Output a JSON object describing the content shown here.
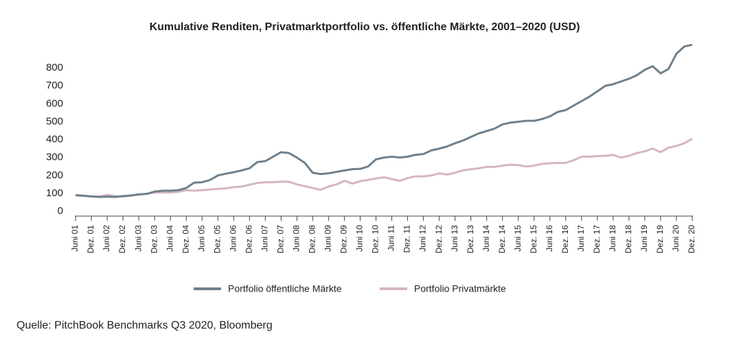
{
  "chart_data": {
    "type": "line",
    "title": "Kumulative Renditen, Privatmarktportfolio vs. öffentliche Märkte, 2001–2020 (USD)",
    "source": "Quelle: PitchBook Benchmarks Q3 2020, Bloomberg",
    "categories": [
      "Juni 01",
      null,
      "Dez. 01",
      null,
      "Juni 02",
      null,
      "Dez. 02",
      null,
      "Juni 03",
      null,
      "Dez. 03",
      null,
      "Juni 04",
      null,
      "Dez. 04",
      null,
      "Juni 05",
      null,
      "Dez. 05",
      null,
      "Juni 06",
      null,
      "Dez. 06",
      null,
      "Juni 07",
      null,
      "Dez. 07",
      null,
      "Juni 08",
      null,
      "Dez. 08",
      null,
      "Juni 09",
      null,
      "Dez. 09",
      null,
      "Juni 10",
      null,
      "Dez. 10",
      null,
      "Juni 11",
      null,
      "Dez. 11",
      null,
      "Juni 12",
      null,
      "Dez. 12",
      null,
      "Juni 13",
      null,
      "Dez. 13",
      null,
      "Juni 14",
      null,
      "Dez. 14",
      null,
      "Juni 15",
      null,
      "Dez. 15",
      null,
      "Juni 16",
      null,
      "Dez. 16",
      null,
      "Juni 17",
      null,
      "Dez. 17",
      null,
      "Juni 18",
      null,
      "Dez. 18",
      null,
      "Juni 19",
      null,
      "Dez. 19",
      null,
      "Juni 20",
      null,
      "Dez. 20"
    ],
    "series": [
      {
        "name": "Portfolio öffentliche Märkte",
        "color": "#6e808c",
        "values": [
          90,
          87,
          83,
          80,
          82,
          80,
          85,
          88,
          95,
          97,
          110,
          115,
          115,
          118,
          130,
          160,
          162,
          175,
          200,
          210,
          218,
          228,
          240,
          275,
          280,
          305,
          330,
          325,
          300,
          270,
          215,
          208,
          212,
          220,
          228,
          235,
          237,
          250,
          290,
          300,
          305,
          300,
          305,
          315,
          320,
          340,
          350,
          362,
          380,
          395,
          415,
          435,
          448,
          462,
          485,
          495,
          500,
          505,
          505,
          515,
          530,
          555,
          565,
          590,
          615,
          640,
          670,
          700,
          710,
          725,
          740,
          760,
          790,
          810,
          770,
          795,
          880,
          920,
          930
        ]
      },
      {
        "name": "Portfolio Privatmärkte",
        "color": "#d4b5c6",
        "values": [
          88,
          86,
          84,
          82,
          92,
          85,
          82,
          88,
          92,
          98,
          105,
          105,
          105,
          108,
          118,
          115,
          118,
          122,
          125,
          128,
          135,
          138,
          148,
          158,
          162,
          163,
          165,
          165,
          150,
          140,
          130,
          120,
          138,
          150,
          170,
          155,
          168,
          175,
          183,
          190,
          180,
          170,
          185,
          195,
          195,
          200,
          212,
          205,
          215,
          228,
          235,
          240,
          248,
          248,
          255,
          260,
          258,
          250,
          255,
          265,
          268,
          270,
          270,
          285,
          305,
          305,
          308,
          310,
          315,
          300,
          310,
          325,
          335,
          350,
          330,
          355,
          365,
          380,
          405
        ]
      }
    ],
    "ylim": [
      0,
      950
    ],
    "yticks": [
      0,
      100,
      200,
      300,
      400,
      500,
      600,
      700,
      800
    ],
    "grid": false,
    "legend": "bottom"
  }
}
